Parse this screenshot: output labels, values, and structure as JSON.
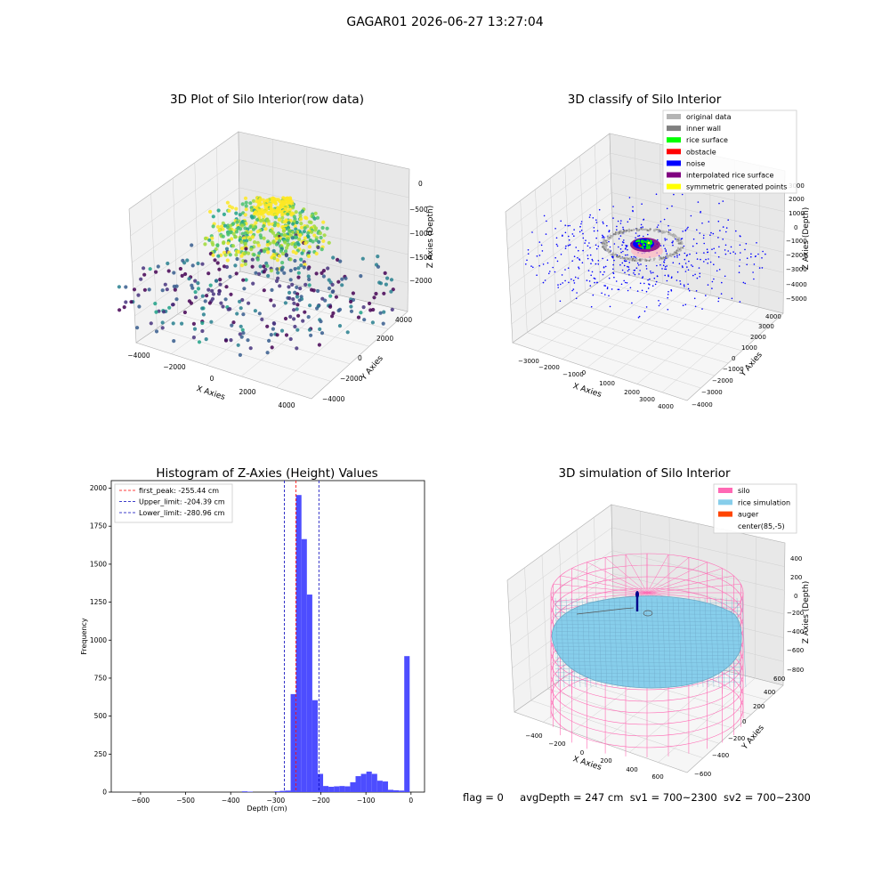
{
  "figure_title": "GAGAR01 2026-06-27 13:27:04",
  "footer": {
    "flag": "flag = 0",
    "avg_depth": "avgDepth = 247 cm",
    "sv1": "sv1 = 700~2300",
    "sv2": "sv2 = 700~2300"
  },
  "chart_data": [
    {
      "type": "scatter",
      "title": "3D Plot of Silo Interior(row data)",
      "xlabel": "X Axies",
      "ylabel": "Y Axies",
      "zlabel": "Z Axies (Depth)",
      "x_ticks": [
        "−4000",
        "−2000",
        "0",
        "2000",
        "4000"
      ],
      "y_ticks": [
        "−4000",
        "−2000",
        "0",
        "2000",
        "4000"
      ],
      "z_ticks": [
        "−2000",
        "−1500",
        "−1000",
        "−500",
        "0"
      ],
      "xlim": [
        -4000,
        4000
      ],
      "ylim": [
        -4000,
        4000
      ],
      "zlim": [
        -2200,
        0
      ],
      "colormap": "viridis",
      "grid": true
    },
    {
      "type": "scatter",
      "title": "3D classify of Silo Interior",
      "xlabel": "X Axies",
      "ylabel": "Y Axies",
      "zlabel": "Z Axies (Depth)",
      "x_ticks": [
        "−3000",
        "−2000",
        "−1000",
        "0",
        "1000",
        "2000",
        "3000",
        "4000"
      ],
      "y_ticks": [
        "−4000",
        "−3000",
        "−2000",
        "−1000",
        "0",
        "1000",
        "2000",
        "3000",
        "4000"
      ],
      "z_ticks": [
        "−5000",
        "−4000",
        "−3000",
        "−2000",
        "−1000",
        "0",
        "1000",
        "2000",
        "3000"
      ],
      "legend_position": "top-right",
      "legend": [
        {
          "label": "original data",
          "color": "#b4b4b4"
        },
        {
          "label": "inner wall",
          "color": "#808080"
        },
        {
          "label": "rice surface",
          "color": "#00ff00"
        },
        {
          "label": "obstacle",
          "color": "#ff0000"
        },
        {
          "label": "noise",
          "color": "#0000ff"
        },
        {
          "label": "interpolated rice surface",
          "color": "#800080"
        },
        {
          "label": "symmetric generated points",
          "color": "#ffff00"
        }
      ],
      "grid": true
    },
    {
      "type": "bar",
      "title": "Histogram of Z-Axies (Height) Values",
      "xlabel": "Depth (cm)",
      "ylabel": "Frequency",
      "xlim": [
        -665,
        30
      ],
      "ylim": [
        0,
        2050
      ],
      "x_ticks": [
        -600,
        -500,
        -400,
        -300,
        -200,
        -100,
        0
      ],
      "x_tick_labels": [
        "−600",
        "−500",
        "−400",
        "−300",
        "−200",
        "−100",
        "0"
      ],
      "y_ticks": [
        0,
        250,
        500,
        750,
        1000,
        1250,
        1500,
        1750,
        2000
      ],
      "bar_color": "#4d4dff",
      "bins": [
        {
          "x0": -375,
          "x1": -363,
          "v": 5
        },
        {
          "x0": -363,
          "x1": -351,
          "v": 3
        },
        {
          "x0": -303,
          "x1": -291,
          "v": 5
        },
        {
          "x0": -291,
          "x1": -279,
          "v": 8
        },
        {
          "x0": -279,
          "x1": -267,
          "v": 10
        },
        {
          "x0": -267,
          "x1": -255,
          "v": 645
        },
        {
          "x0": -255,
          "x1": -243,
          "v": 1955
        },
        {
          "x0": -243,
          "x1": -231,
          "v": 1665
        },
        {
          "x0": -231,
          "x1": -219,
          "v": 1300
        },
        {
          "x0": -219,
          "x1": -207,
          "v": 605
        },
        {
          "x0": -207,
          "x1": -195,
          "v": 120
        },
        {
          "x0": -195,
          "x1": -183,
          "v": 40
        },
        {
          "x0": -183,
          "x1": -171,
          "v": 35
        },
        {
          "x0": -171,
          "x1": -159,
          "v": 38
        },
        {
          "x0": -159,
          "x1": -147,
          "v": 40
        },
        {
          "x0": -147,
          "x1": -135,
          "v": 38
        },
        {
          "x0": -135,
          "x1": -123,
          "v": 65
        },
        {
          "x0": -123,
          "x1": -111,
          "v": 105
        },
        {
          "x0": -111,
          "x1": -99,
          "v": 120
        },
        {
          "x0": -99,
          "x1": -87,
          "v": 135
        },
        {
          "x0": -87,
          "x1": -75,
          "v": 120
        },
        {
          "x0": -75,
          "x1": -63,
          "v": 75
        },
        {
          "x0": -63,
          "x1": -51,
          "v": 70
        },
        {
          "x0": -51,
          "x1": -39,
          "v": 15
        },
        {
          "x0": -39,
          "x1": -27,
          "v": 12
        },
        {
          "x0": -27,
          "x1": -15,
          "v": 10
        },
        {
          "x0": -15,
          "x1": -3,
          "v": 895
        }
      ],
      "vlines": [
        {
          "label": "first_peak: -255.44 cm",
          "x": -255.44,
          "color": "#ff0000"
        },
        {
          "label": "Upper_limit: -204.39 cm",
          "x": -204.39,
          "color": "#0000bb"
        },
        {
          "label": "Lower_limit: -280.96 cm",
          "x": -280.96,
          "color": "#0000bb"
        }
      ],
      "legend_position": "top-left"
    },
    {
      "type": "area",
      "title": "3D simulation of Silo Interior",
      "xlabel": "X Axies",
      "ylabel": "Y Axies",
      "zlabel": "Z Axies (Depth)",
      "x_ticks": [
        "−400",
        "−200",
        "0",
        "200",
        "400",
        "600"
      ],
      "y_ticks": [
        "−600",
        "−400",
        "−200",
        "0",
        "200",
        "400",
        "600"
      ],
      "z_ticks": [
        "−800",
        "−600",
        "−400",
        "−200",
        "0",
        "200",
        "400"
      ],
      "legend_position": "top-right",
      "legend": [
        {
          "label": "silo",
          "color": "#ff69b4"
        },
        {
          "label": "rice simulation",
          "color": "#87ceeb"
        },
        {
          "label": "auger",
          "color": "#ff4500"
        },
        {
          "label": "center(85,-5)",
          "color": "#ffffff"
        }
      ],
      "grid": true
    }
  ]
}
